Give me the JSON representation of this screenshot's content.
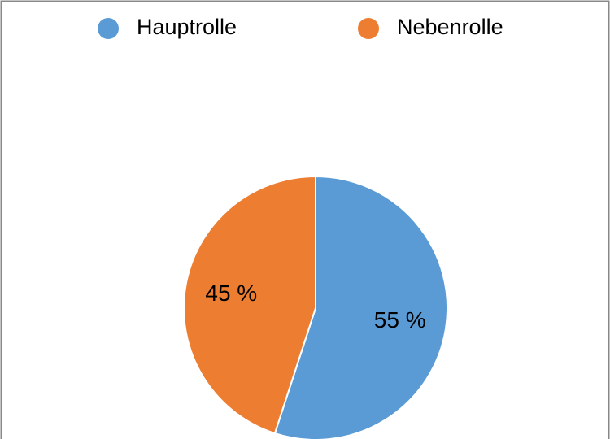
{
  "chart_data": {
    "type": "pie",
    "categories": [
      "Hauptrolle",
      "Nebenrolle"
    ],
    "values": [
      55,
      45
    ],
    "value_labels": [
      "55 %",
      "45 %"
    ],
    "colors": [
      "#5b9bd5",
      "#ed7d31"
    ],
    "legend": "top"
  }
}
